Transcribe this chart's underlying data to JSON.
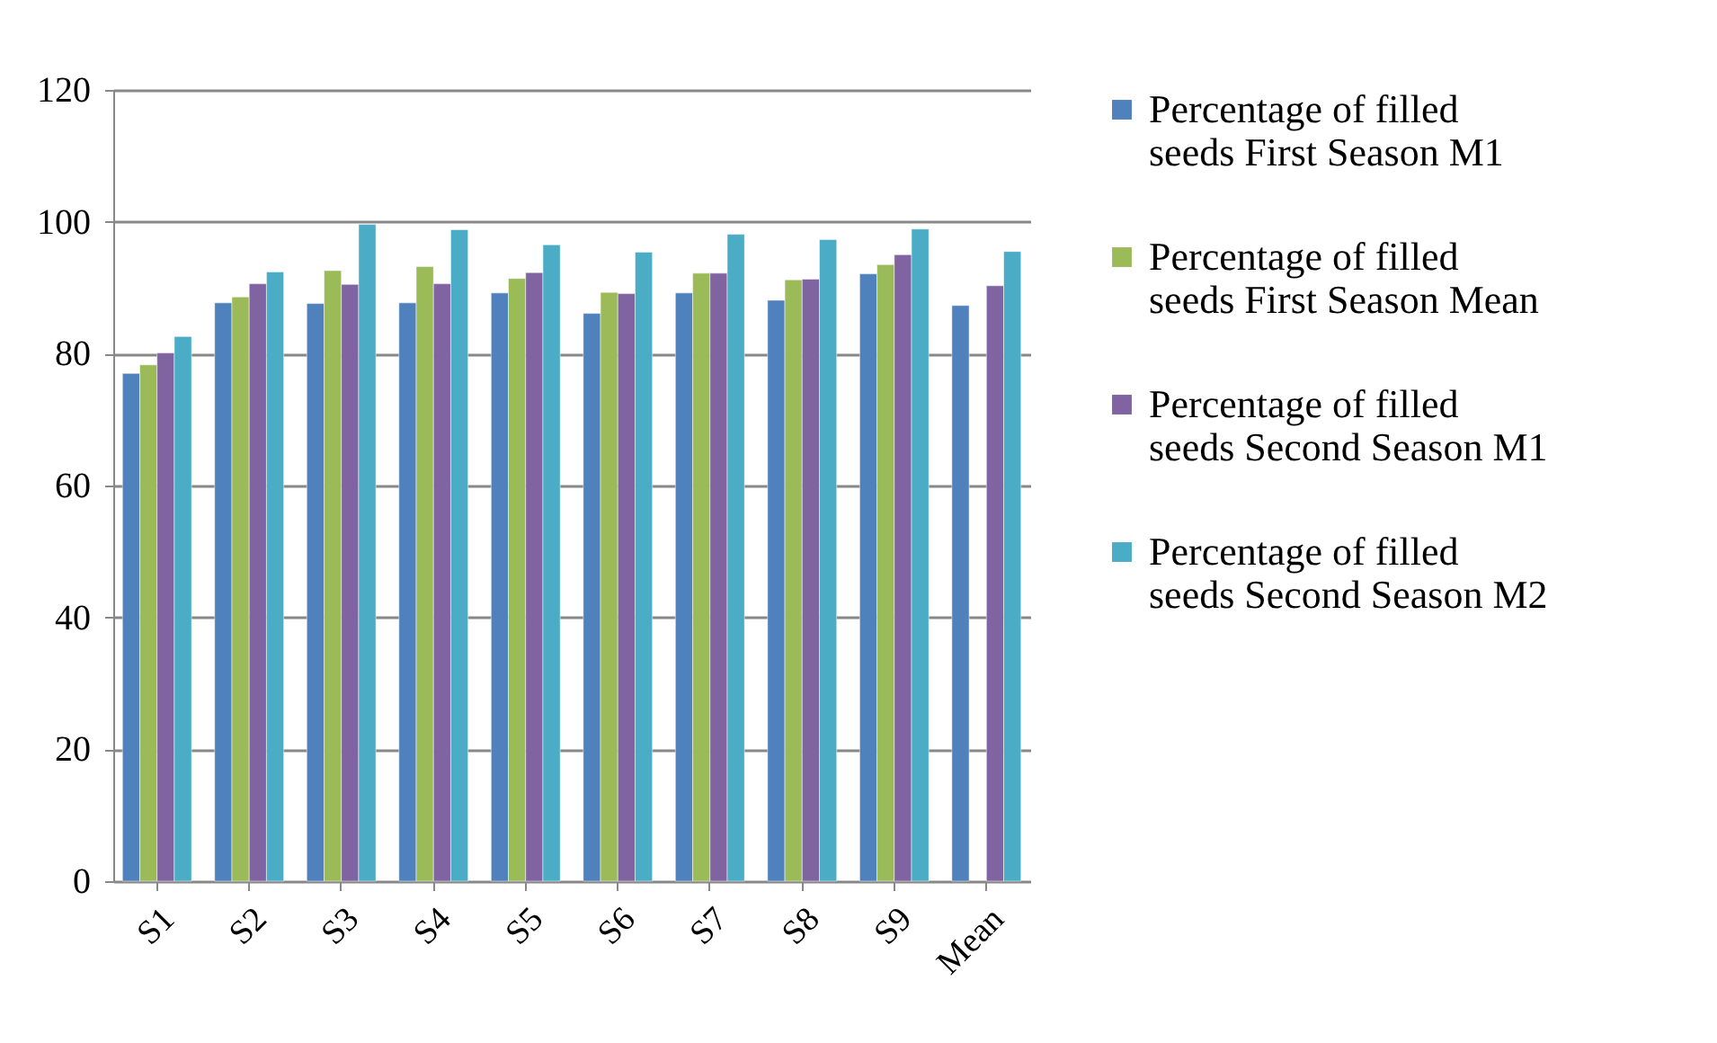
{
  "chart_data": {
    "type": "bar",
    "categories": [
      "S1",
      "S2",
      "S3",
      "S4",
      "S5",
      "S6",
      "S7",
      "S8",
      "S9",
      "Mean"
    ],
    "series": [
      {
        "name": "Percentage of filled seeds First Season M1",
        "color": "#4f81bd",
        "values": [
          77.0,
          87.7,
          87.6,
          87.7,
          89.2,
          86.1,
          89.2,
          88.1,
          92.1,
          87.3
        ]
      },
      {
        "name": "Percentage of filled seeds First Season Mean",
        "color": "#9bbb59",
        "values": [
          78.3,
          88.6,
          92.6,
          93.2,
          91.4,
          89.3,
          92.2,
          91.2,
          93.5,
          null
        ]
      },
      {
        "name": "Percentage of filled seeds Second Season M1",
        "color": "#8064a2",
        "values": [
          80.1,
          90.6,
          90.5,
          90.6,
          92.3,
          89.1,
          92.2,
          91.3,
          95.0,
          90.3
        ]
      },
      {
        "name": "Percentage of filled seeds Second Season M2",
        "color": "#4bacc6",
        "values": [
          82.6,
          92.4,
          99.6,
          98.8,
          96.5,
          95.4,
          98.1,
          97.3,
          98.9,
          95.5
        ]
      }
    ],
    "ylim": [
      0,
      120
    ],
    "yticks": [
      0,
      20,
      40,
      60,
      80,
      100,
      120
    ],
    "grid": "y",
    "legend": "right"
  }
}
